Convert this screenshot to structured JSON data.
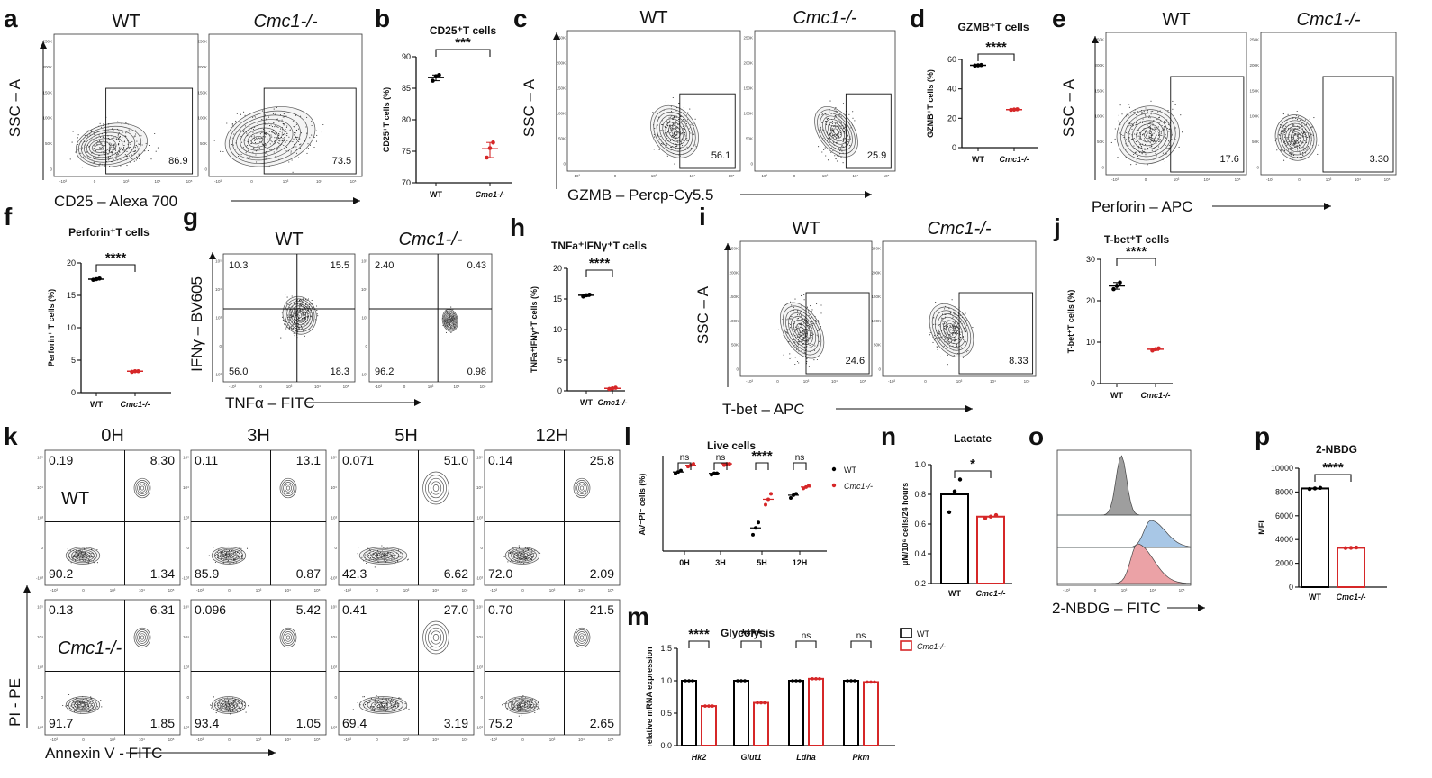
{
  "panel_letters": [
    "a",
    "b",
    "c",
    "d",
    "e",
    "f",
    "g",
    "h",
    "i",
    "j",
    "k",
    "l",
    "m",
    "n",
    "o",
    "p"
  ],
  "colors": {
    "wt": "#000000",
    "ko": "#d62728",
    "ko_fill": "#e8a3a6",
    "wt_hist": "#9e9e9e",
    "ko_hist_blue": "#a8c7e6",
    "ko_hist_red": "#eba2a6"
  },
  "facs": {
    "a": {
      "left_title": "WT",
      "right_title": "Cmc1-/-",
      "ylabel": "SSC – A",
      "xlabel": "CD25 – Alexa 700",
      "left_value": "86.9",
      "right_value": "73.5",
      "yticks": [
        "250K",
        "200K",
        "150K",
        "100K",
        "50K",
        "0"
      ],
      "xticks": [
        "-10³",
        "0",
        "10³",
        "10⁴",
        "10⁵"
      ]
    },
    "c": {
      "left_title": "WT",
      "right_title": "Cmc1-/-",
      "ylabel": "SSC – A",
      "xlabel": "GZMB – Percp-Cy5.5",
      "left_value": "56.1",
      "right_value": "25.9",
      "yticks": [
        "250K",
        "200K",
        "150K",
        "100K",
        "50K",
        "0"
      ],
      "xticks": [
        "-10³",
        "0",
        "10³",
        "10⁴",
        "10⁵"
      ]
    },
    "e": {
      "left_title": "WT",
      "right_title": "Cmc1-/-",
      "ylabel": "SSC – A",
      "xlabel": "Perforin – APC",
      "left_value": "17.6",
      "right_value": "3.30",
      "yticks": [
        "250K",
        "200K",
        "150K",
        "100K",
        "50K",
        "0"
      ],
      "xticks": [
        "-10³",
        "0",
        "10³",
        "10⁴",
        "10⁵"
      ]
    },
    "g": {
      "left_title": "WT",
      "right_title": "Cmc1-/-",
      "ylabel": "IFNγ – BV605",
      "xlabel": "TNFα – FITC",
      "left_q": [
        "10.3",
        "15.5",
        "56.0",
        "18.3"
      ],
      "right_q": [
        "2.40",
        "0.43",
        "96.2",
        "0.98"
      ],
      "yticks": [
        "10⁵",
        "10⁴",
        "10³",
        "0",
        "-10³"
      ],
      "xticks": [
        "-10³",
        "0",
        "10³",
        "10⁴",
        "10⁵"
      ]
    },
    "i": {
      "left_title": "WT",
      "right_title": "Cmc1-/-",
      "ylabel": "SSC – A",
      "xlabel": "T-bet – APC",
      "left_value": "24.6",
      "right_value": "8.33",
      "yticks": [
        "250K",
        "200K",
        "150K",
        "100K",
        "50K",
        "0"
      ],
      "xticks": [
        "-10³",
        "0",
        "10³",
        "10⁴",
        "10⁵"
      ]
    },
    "k": {
      "times": [
        "0H",
        "3H",
        "5H",
        "12H"
      ],
      "row_labels": [
        "WT",
        "Cmc1-/-"
      ],
      "ylabel": "PI - PE",
      "xlabel": "Annexin V - FITC",
      "quadrants": [
        [
          [
            "0.19",
            "8.30",
            "90.2",
            "1.34"
          ],
          [
            "0.11",
            "13.1",
            "85.9",
            "0.87"
          ],
          [
            "0.071",
            "51.0",
            "42.3",
            "6.62"
          ],
          [
            "0.14",
            "25.8",
            "72.0",
            "2.09"
          ]
        ],
        [
          [
            "0.13",
            "6.31",
            "91.7",
            "1.85"
          ],
          [
            "0.096",
            "5.42",
            "93.4",
            "1.05"
          ],
          [
            "0.41",
            "27.0",
            "69.4",
            "3.19"
          ],
          [
            "0.70",
            "21.5",
            "75.2",
            "2.65"
          ]
        ]
      ],
      "yticks": [
        "10⁵",
        "10⁴",
        "10³",
        "0",
        "-10³"
      ],
      "xticks": [
        "-10³",
        "0",
        "10³",
        "10⁴",
        "10⁵"
      ]
    },
    "o": {
      "xlabel": "2-NBDG – FITC"
    }
  },
  "chart_data": [
    {
      "id": "b",
      "type": "scatter",
      "title": "CD25⁺T cells",
      "ylabel": "CD25⁺T cells (%)",
      "ylim": [
        70,
        90
      ],
      "yticks": [
        70,
        75,
        80,
        85,
        90
      ],
      "categories": [
        "WT",
        "Cmc1-/-"
      ],
      "means": [
        86.7,
        75.4
      ],
      "points": [
        [
          86.2,
          86.9,
          87.1
        ],
        [
          74.0,
          75.5,
          76.4
        ]
      ],
      "significance": "***"
    },
    {
      "id": "d",
      "type": "scatter",
      "title": "GZMB⁺T cells",
      "ylabel": "GZMB⁺T cells (%)",
      "ylim": [
        0,
        60
      ],
      "yticks": [
        0,
        20,
        40,
        60
      ],
      "categories": [
        "WT",
        "Cmc1-/-"
      ],
      "means": [
        56.0,
        25.9
      ],
      "points": [
        [
          55.8,
          56.0,
          56.2
        ],
        [
          25.7,
          25.9,
          26.1
        ]
      ],
      "significance": "****"
    },
    {
      "id": "f",
      "type": "scatter",
      "title": "Perforin⁺T cells",
      "ylabel": "Perforin⁺ T cells (%)",
      "ylim": [
        0,
        20
      ],
      "yticks": [
        0,
        5,
        10,
        15,
        20
      ],
      "categories": [
        "WT",
        "Cmc1-/-"
      ],
      "means": [
        17.5,
        3.3
      ],
      "points": [
        [
          17.4,
          17.5,
          17.6
        ],
        [
          3.2,
          3.3,
          3.3
        ]
      ],
      "significance": "****"
    },
    {
      "id": "h",
      "type": "scatter",
      "title": "TNFa⁺IFNγ⁺T cells",
      "ylabel": "TNFa⁺IFNγ⁺T cells (%)",
      "ylim": [
        0,
        20
      ],
      "yticks": [
        0,
        5,
        10,
        15,
        20
      ],
      "categories": [
        "WT",
        "Cmc1-/-"
      ],
      "means": [
        15.6,
        0.4
      ],
      "points": [
        [
          15.4,
          15.6,
          15.7
        ],
        [
          0.3,
          0.4,
          0.5
        ]
      ],
      "significance": "****"
    },
    {
      "id": "j",
      "type": "scatter",
      "title": "T-bet⁺T cells",
      "ylabel": "T-bet⁺T cells (%)",
      "ylim": [
        0,
        30
      ],
      "yticks": [
        0,
        10,
        20,
        30
      ],
      "categories": [
        "WT",
        "Cmc1-/-"
      ],
      "means": [
        23.6,
        8.3
      ],
      "points": [
        [
          22.8,
          23.6,
          24.4
        ],
        [
          8.0,
          8.3,
          8.5
        ]
      ],
      "significance": "****"
    },
    {
      "id": "l",
      "type": "scatter",
      "title": "Live cells",
      "ylabel": "AV⁻PI⁻ cells (%)",
      "ylim": [
        30,
        100
      ],
      "categories": [
        "0H",
        "3H",
        "5H",
        "12H"
      ],
      "series": [
        {
          "name": "WT",
          "means": [
            88,
            87,
            47,
            71
          ],
          "points": [
            [
              87,
              88,
              89
            ],
            [
              86,
              87,
              87
            ],
            [
              42,
              47,
              51
            ],
            [
              69,
              71,
              72
            ]
          ]
        },
        {
          "name": "Cmc1-/-",
          "means": [
            93,
            94,
            68,
            77
          ],
          "points": [
            [
              92,
              93,
              94
            ],
            [
              93,
              94,
              94
            ],
            [
              64,
              68,
              72
            ],
            [
              76,
              77,
              78
            ]
          ]
        }
      ],
      "significance": [
        "ns",
        "ns",
        "****",
        "ns"
      ],
      "legend": [
        "WT",
        "Cmc1-/-"
      ]
    },
    {
      "id": "m",
      "type": "bar",
      "title": "Glycolysis",
      "ylabel": "relative  mRNA expression",
      "ylim": [
        0,
        1.5
      ],
      "yticks": [
        0.0,
        0.5,
        1.0,
        1.5
      ],
      "categories": [
        "Hk2",
        "Glut1",
        "Ldha",
        "Pkm"
      ],
      "series": [
        {
          "name": "WT",
          "values": [
            1.0,
            1.0,
            1.0,
            1.0
          ]
        },
        {
          "name": "Cmc1-/-",
          "values": [
            0.61,
            0.66,
            1.03,
            0.98
          ]
        }
      ],
      "significance": [
        "****",
        "****",
        "ns",
        "ns"
      ],
      "legend": [
        "WT",
        "Cmc1-/-"
      ]
    },
    {
      "id": "n",
      "type": "bar",
      "title": "Lactate",
      "ylabel": "μM/10⁶ cells/24 hours",
      "ylim": [
        0.2,
        1.0
      ],
      "yticks": [
        0.2,
        0.4,
        0.6,
        0.8,
        1.0
      ],
      "categories": [
        "WT",
        "Cmc1-/-"
      ],
      "values": [
        0.8,
        0.65
      ],
      "points": [
        [
          0.68,
          0.82,
          0.9
        ],
        [
          0.64,
          0.65,
          0.66
        ]
      ],
      "significance": "*"
    },
    {
      "id": "p",
      "type": "bar",
      "title": "2-NBDG",
      "ylabel": "MFI",
      "ylim": [
        0,
        10000
      ],
      "yticks": [
        0,
        2000,
        4000,
        6000,
        8000,
        10000
      ],
      "categories": [
        "WT",
        "Cmc1-/-"
      ],
      "values": [
        8300,
        3300
      ],
      "points": [
        [
          8250,
          8300,
          8350
        ],
        [
          3280,
          3300,
          3330
        ]
      ],
      "significance": "****"
    }
  ]
}
